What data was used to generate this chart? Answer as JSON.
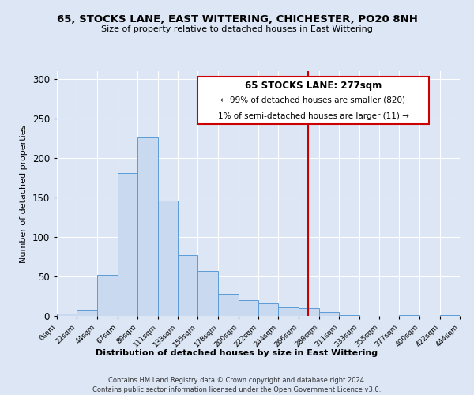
{
  "title": "65, STOCKS LANE, EAST WITTERING, CHICHESTER, PO20 8NH",
  "subtitle": "Size of property relative to detached houses in East Wittering",
  "xlabel": "Distribution of detached houses by size in East Wittering",
  "ylabel": "Number of detached properties",
  "bin_edges": [
    0,
    22,
    44,
    67,
    89,
    111,
    133,
    155,
    178,
    200,
    222,
    244,
    266,
    289,
    311,
    333,
    355,
    377,
    400,
    422,
    444
  ],
  "bar_heights": [
    3,
    7,
    52,
    181,
    226,
    146,
    77,
    57,
    28,
    20,
    16,
    11,
    10,
    5,
    1,
    0,
    0,
    1,
    0,
    1
  ],
  "bar_color": "#c9d9f0",
  "bar_edge_color": "#5b9bd5",
  "vline_x": 277,
  "vline_color": "#cc0000",
  "ylim": [
    0,
    310
  ],
  "annotation_title": "65 STOCKS LANE: 277sqm",
  "annotation_line1": "← 99% of detached houses are smaller (820)",
  "annotation_line2": "1% of semi-detached houses are larger (11) →",
  "annotation_box_color": "#cc0000",
  "annotation_text_color": "#000000",
  "footnote1": "Contains HM Land Registry data © Crown copyright and database right 2024.",
  "footnote2": "Contains public sector information licensed under the Open Government Licence v3.0.",
  "tick_labels": [
    "0sqm",
    "22sqm",
    "44sqm",
    "67sqm",
    "89sqm",
    "111sqm",
    "133sqm",
    "155sqm",
    "178sqm",
    "200sqm",
    "222sqm",
    "244sqm",
    "266sqm",
    "289sqm",
    "311sqm",
    "333sqm",
    "355sqm",
    "377sqm",
    "400sqm",
    "422sqm",
    "444sqm"
  ],
  "background_color": "#dce6f5",
  "grid_color": "#ffffff",
  "yticks": [
    0,
    50,
    100,
    150,
    200,
    250,
    300
  ]
}
